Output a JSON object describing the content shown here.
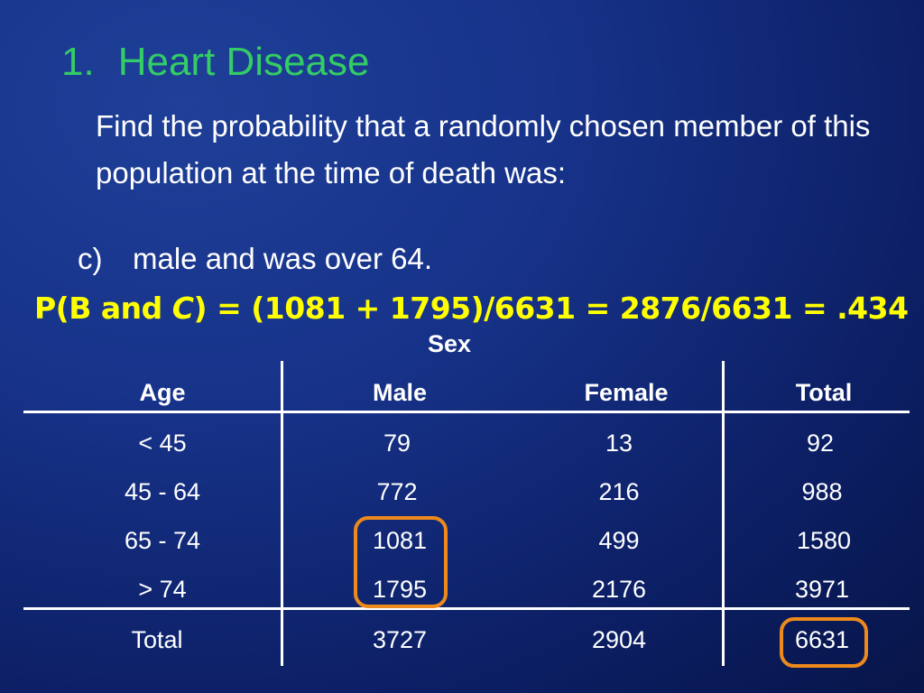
{
  "slide": {
    "title_number": "1.",
    "title_text": "Heart Disease",
    "question": "Find the probability that a randomly chosen member of this population at the time of death was:",
    "item_marker": "c)",
    "item_text": "male and was over 64.",
    "formula": {
      "p_open": "P(B and ",
      "p_var": "C",
      "p_close": ") = (1081 + 1795)/6631 = 2876/6631 = .434"
    }
  },
  "table": {
    "group_header": "Sex",
    "headers": [
      "Age",
      "Male",
      "Female",
      "Total"
    ],
    "rows": [
      [
        "< 45",
        "79",
        "13",
        "92"
      ],
      [
        "45 - 64",
        "772",
        "216",
        "988"
      ],
      [
        "65 - 74",
        "1081",
        "499",
        "1580"
      ],
      [
        "> 74",
        "1795",
        "2176",
        "3971"
      ]
    ],
    "total_row": [
      "Total",
      "3727",
      "2904",
      "6631"
    ],
    "highlight_color": "#ee8a1c"
  },
  "colors": {
    "title": "#33cc66",
    "formula": "#ffff00",
    "background": "#17338a",
    "text": "#ffffff"
  }
}
